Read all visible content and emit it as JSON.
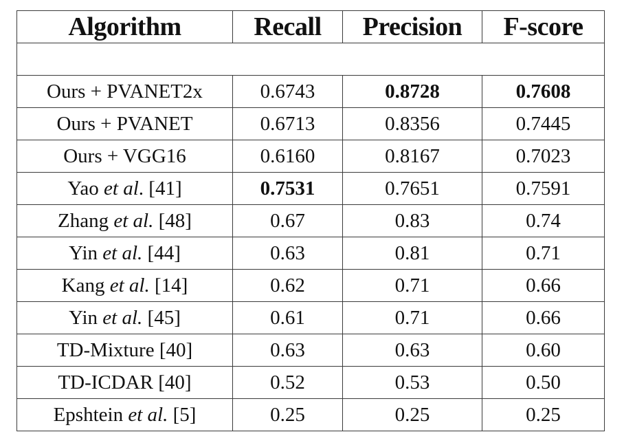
{
  "headers": {
    "algorithm": "Algorithm",
    "recall": "Recall",
    "precision": "Precision",
    "fscore": "F-score"
  },
  "rows": [
    {
      "name": "Ours + PVANET2x",
      "etal": "",
      "ref": "",
      "recall": "0.6743",
      "precision": "0.8728",
      "fscore": "0.7608",
      "bold": [
        "precision",
        "fscore"
      ]
    },
    {
      "name": "Ours + PVANET",
      "etal": "",
      "ref": "",
      "recall": "0.6713",
      "precision": "0.8356",
      "fscore": "0.7445",
      "bold": []
    },
    {
      "name": "Ours + VGG16",
      "etal": "",
      "ref": "",
      "recall": "0.6160",
      "precision": "0.8167",
      "fscore": "0.7023",
      "bold": []
    },
    {
      "name": "Yao ",
      "etal": "et al",
      "ref": ". [41]",
      "recall": "0.7531",
      "precision": "0.7651",
      "fscore": "0.7591",
      "bold": [
        "recall"
      ]
    },
    {
      "name": "Zhang ",
      "etal": "et al.",
      "ref": " [48]",
      "recall": "0.67",
      "precision": "0.83",
      "fscore": "0.74",
      "bold": []
    },
    {
      "name": "Yin ",
      "etal": "et al.",
      "ref": " [44]",
      "recall": "0.63",
      "precision": "0.81",
      "fscore": "0.71",
      "bold": []
    },
    {
      "name": "Kang ",
      "etal": "et al.",
      "ref": " [14]",
      "recall": "0.62",
      "precision": "0.71",
      "fscore": "0.66",
      "bold": []
    },
    {
      "name": "Yin ",
      "etal": "et al.",
      "ref": " [45]",
      "recall": "0.61",
      "precision": "0.71",
      "fscore": "0.66",
      "bold": []
    },
    {
      "name": "TD-Mixture [40]",
      "etal": "",
      "ref": "",
      "recall": "0.63",
      "precision": "0.63",
      "fscore": "0.60",
      "bold": []
    },
    {
      "name": "TD-ICDAR [40]",
      "etal": "",
      "ref": "",
      "recall": "0.52",
      "precision": "0.53",
      "fscore": "0.50",
      "bold": []
    },
    {
      "name": "Epshtein ",
      "etal": "et al.",
      "ref": " [5]",
      "recall": "0.25",
      "precision": "0.25",
      "fscore": "0.25",
      "bold": []
    }
  ]
}
